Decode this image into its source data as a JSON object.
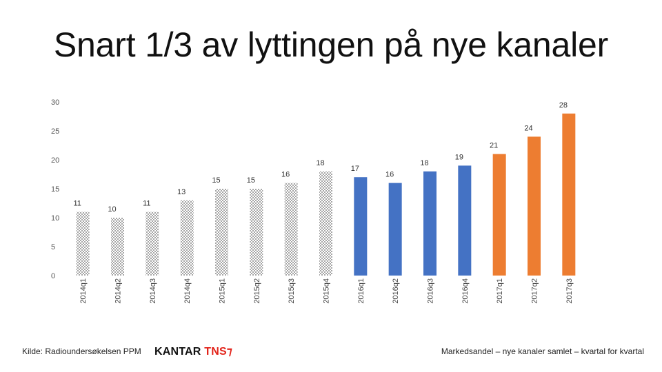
{
  "title": "Snart 1/3 av lyttingen på nye kanaler",
  "source": "Kilde: Radioundersøkelsen PPM",
  "logo": {
    "primary": "KANTAR",
    "secondary": "TNS",
    "mark": "⁊"
  },
  "caption": "Markedsandel – nye kanaler samlet – kvartal for kvartal",
  "chart_data": {
    "type": "bar",
    "categories": [
      "2014q1",
      "2014q2",
      "2014q3",
      "2014q4",
      "2015q1",
      "2015q2",
      "2015q3",
      "2015q4",
      "2016q1",
      "2016q2",
      "2016q3",
      "2016q4",
      "2017q1",
      "2017q2",
      "2017q3"
    ],
    "values": [
      11,
      10,
      11,
      13,
      15,
      15,
      16,
      18,
      17,
      16,
      18,
      19,
      21,
      24,
      28
    ],
    "data_labels": [
      "11",
      "10",
      "11",
      "13",
      "15",
      "15",
      "16",
      "18",
      "17",
      "16",
      "18",
      "19",
      "21",
      "24",
      "28"
    ],
    "fills": [
      "pattern",
      "pattern",
      "pattern",
      "pattern",
      "pattern",
      "pattern",
      "pattern",
      "pattern",
      "#4472c4",
      "#4472c4",
      "#4472c4",
      "#4472c4",
      "#ed7d31",
      "#ed7d31",
      "#ed7d31"
    ],
    "ylim": [
      0,
      30
    ],
    "yticks": [
      0,
      5,
      10,
      15,
      20,
      25,
      30
    ],
    "grid": false,
    "legend": "none",
    "colors": {
      "blue": "#4472c4",
      "orange": "#ed7d31",
      "pattern_light": "#ffffff",
      "pattern_dark": "#a6a6a6"
    }
  }
}
